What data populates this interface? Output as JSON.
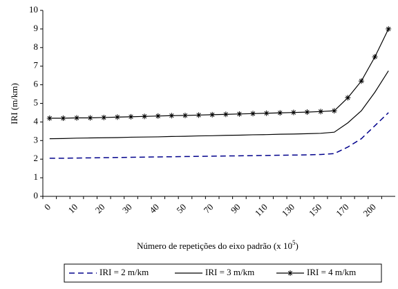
{
  "chart_data": {
    "type": "line",
    "y_label": "IRI (m/km)",
    "x_label": "Número de repetições do eixo padrão (x 10",
    "x_label_exponent": "5",
    "x_label_end": ")",
    "categories": [
      "0",
      null,
      "10",
      null,
      "20",
      null,
      "30",
      null,
      "40",
      null,
      "50",
      null,
      "70",
      null,
      "90",
      null,
      "110",
      null,
      "130",
      null,
      "150",
      null,
      "170",
      null,
      "200",
      null
    ],
    "series": [
      {
        "name": "IRI = 2 m/km",
        "color": "#00008b",
        "dash": "dashed",
        "marker": "none",
        "values": [
          2.05,
          2.05,
          2.06,
          2.07,
          2.08,
          2.09,
          2.1,
          2.11,
          2.12,
          2.13,
          2.14,
          2.15,
          2.16,
          2.17,
          2.18,
          2.19,
          2.2,
          2.21,
          2.22,
          2.23,
          2.25,
          2.3,
          2.65,
          3.1,
          3.8,
          4.5
        ]
      },
      {
        "name": "IRI = 3 m/km",
        "color": "#000000",
        "dash": "solid",
        "marker": "none",
        "values": [
          3.1,
          3.11,
          3.13,
          3.14,
          3.15,
          3.16,
          3.18,
          3.19,
          3.2,
          3.22,
          3.23,
          3.25,
          3.26,
          3.28,
          3.29,
          3.31,
          3.32,
          3.34,
          3.35,
          3.37,
          3.39,
          3.45,
          3.95,
          4.6,
          5.6,
          6.75
        ]
      },
      {
        "name": "IRI = 4 m/km",
        "color": "#000000",
        "dash": "solid",
        "marker": "star",
        "values": [
          4.2,
          4.2,
          4.22,
          4.22,
          4.24,
          4.26,
          4.28,
          4.3,
          4.32,
          4.34,
          4.35,
          4.37,
          4.39,
          4.41,
          4.43,
          4.45,
          4.47,
          4.49,
          4.51,
          4.53,
          4.56,
          4.6,
          5.3,
          6.2,
          7.5,
          9.0
        ]
      }
    ],
    "ylim": [
      0,
      10
    ],
    "yticks": [
      0,
      1,
      2,
      3,
      4,
      5,
      6,
      7,
      8,
      9,
      10
    ],
    "grid": false,
    "legend": "bottom"
  }
}
